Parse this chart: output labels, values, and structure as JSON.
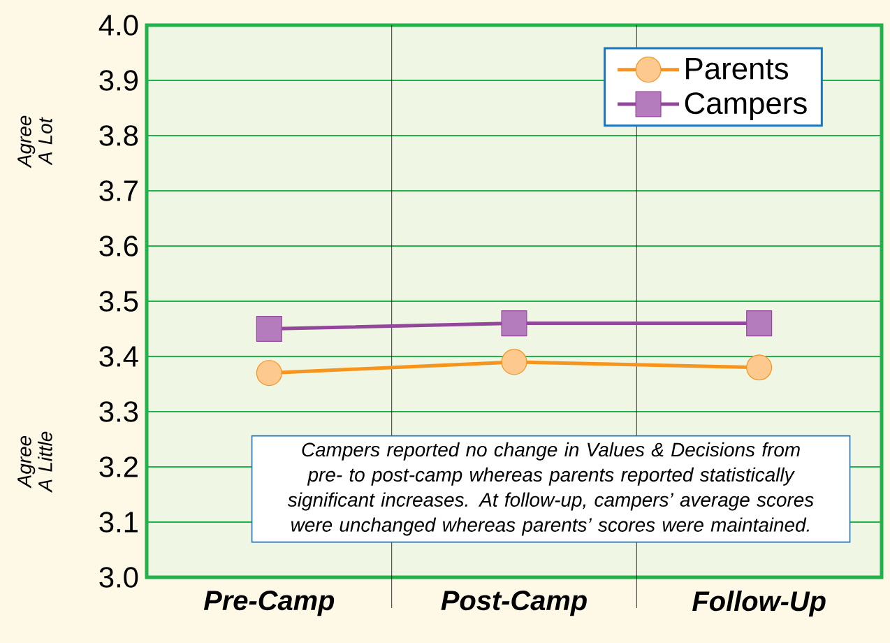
{
  "chart_data": {
    "type": "line",
    "categories": [
      "Pre-Camp",
      "Post-Camp",
      "Follow-Up"
    ],
    "series": [
      {
        "name": "Parents",
        "color": "#f7941d",
        "marker": "circle",
        "values": [
          3.37,
          3.39,
          3.38
        ]
      },
      {
        "name": "Campers",
        "color": "#93479b",
        "marker": "square",
        "values": [
          3.45,
          3.46,
          3.46
        ]
      }
    ],
    "ylim": [
      3.0,
      4.0
    ],
    "yticks": [
      {
        "value": 3.0,
        "label": "3.0"
      },
      {
        "value": 3.1,
        "label": "3.1"
      },
      {
        "value": 3.2,
        "label": "3.2"
      },
      {
        "value": 3.3,
        "label": "3.3"
      },
      {
        "value": 3.4,
        "label": "3.4"
      },
      {
        "value": 3.5,
        "label": "3.5"
      },
      {
        "value": 3.6,
        "label": "3.6"
      },
      {
        "value": 3.7,
        "label": "3.7"
      },
      {
        "value": 3.8,
        "label": "3.8"
      },
      {
        "value": 3.9,
        "label": "3.9"
      },
      {
        "value": 4.0,
        "label": "4.0"
      }
    ],
    "grid": "y",
    "legend": "top right",
    "line_style": "solid",
    "annotations": [
      "Agree A Lot",
      "Agree A Little",
      "Campers reported no change in Values & Decisions from pre- to post-camp whereas parents reported statistically significant increases. At follow-up, campers’ average scores were unchanged whereas parents’ scores were maintained."
    ]
  }
}
